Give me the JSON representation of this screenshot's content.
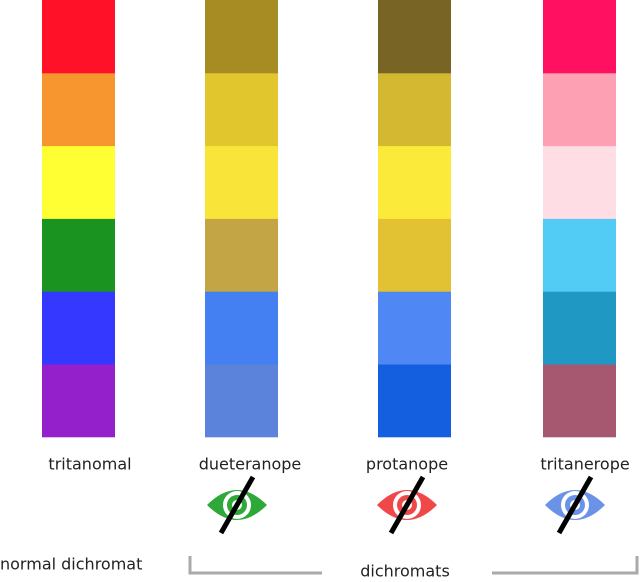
{
  "columns": [
    {
      "label": "tritanomal",
      "colors": [
        "#ff1127",
        "#f7952f",
        "#ffff33",
        "#1a9321",
        "#3539ff",
        "#9320cb"
      ]
    },
    {
      "label": "dueteranope",
      "colors": [
        "#a68c22",
        "#e2c62e",
        "#f9e53a",
        "#c3a545",
        "#4580f2",
        "#5c83db"
      ]
    },
    {
      "label": "protanope",
      "colors": [
        "#786424",
        "#d4b831",
        "#fbea39",
        "#e2c232",
        "#4f88f4",
        "#145ee0"
      ]
    },
    {
      "label": "tritanerope",
      "colors": [
        "#ff1060",
        "#fda0b3",
        "#ffdde4",
        "#53ccf5",
        "#1f98c4",
        "#a65870"
      ]
    }
  ],
  "groups": {
    "normal": "normal dichromat",
    "dichromats": "dichromats"
  }
}
